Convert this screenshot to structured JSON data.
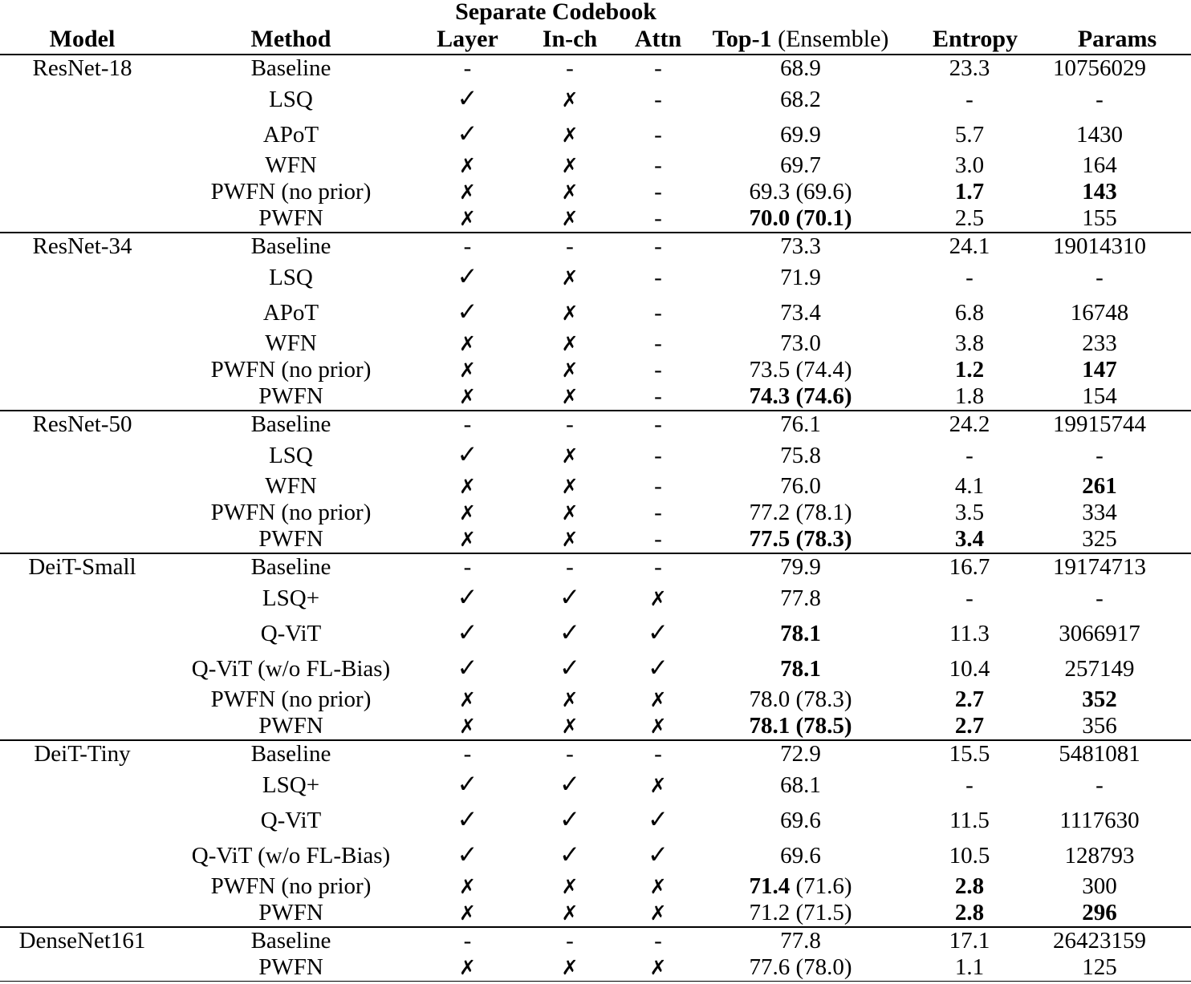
{
  "header": {
    "span_label": "Separate Codebook",
    "columns": {
      "model": "Model",
      "method": "Method",
      "layer": "Layer",
      "inch": "In-ch",
      "attn": "Attn",
      "top1_bold": "Top-1",
      "top1_normal": "(Ensemble)",
      "entropy": "Entropy",
      "params": "Params"
    }
  },
  "marks": {
    "check": "✓",
    "cross": "✗",
    "dash": "-"
  },
  "groups": [
    {
      "model": "ResNet-18",
      "rows": [
        {
          "method": "Baseline",
          "layer": "dash",
          "inch": "dash",
          "attn": "dash",
          "top1": {
            "main": "68.9"
          },
          "entropy": {
            "v": "23.3"
          },
          "params": {
            "v": "10756029"
          }
        },
        {
          "method": "LSQ",
          "layer": "check",
          "inch": "cross",
          "attn": "dash",
          "top1": {
            "main": "68.2"
          },
          "entropy": {
            "v": "-"
          },
          "params": {
            "v": "-"
          }
        },
        {
          "method": "APoT",
          "layer": "check",
          "inch": "cross",
          "attn": "dash",
          "top1": {
            "main": "69.9"
          },
          "entropy": {
            "v": "5.7"
          },
          "params": {
            "v": "1430"
          }
        },
        {
          "method": "WFN",
          "layer": "cross",
          "inch": "cross",
          "attn": "dash",
          "top1": {
            "main": "69.7"
          },
          "entropy": {
            "v": "3.0"
          },
          "params": {
            "v": "164"
          }
        },
        {
          "method": "PWFN (no prior)",
          "layer": "cross",
          "inch": "cross",
          "attn": "dash",
          "top1": {
            "main": "69.3",
            "paren": "(69.6)"
          },
          "entropy": {
            "v": "1.7",
            "bold": true
          },
          "params": {
            "v": "143",
            "bold": true
          }
        },
        {
          "method": "PWFN",
          "layer": "cross",
          "inch": "cross",
          "attn": "dash",
          "top1": {
            "main": "70.0",
            "paren": "(70.1)",
            "main_bold": true,
            "paren_bold": true
          },
          "entropy": {
            "v": "2.5"
          },
          "params": {
            "v": "155"
          }
        }
      ]
    },
    {
      "model": "ResNet-34",
      "rows": [
        {
          "method": "Baseline",
          "layer": "dash",
          "inch": "dash",
          "attn": "dash",
          "top1": {
            "main": "73.3"
          },
          "entropy": {
            "v": "24.1"
          },
          "params": {
            "v": "19014310"
          }
        },
        {
          "method": "LSQ",
          "layer": "check",
          "inch": "cross",
          "attn": "dash",
          "top1": {
            "main": "71.9"
          },
          "entropy": {
            "v": "-"
          },
          "params": {
            "v": "-"
          }
        },
        {
          "method": "APoT",
          "layer": "check",
          "inch": "cross",
          "attn": "dash",
          "top1": {
            "main": "73.4"
          },
          "entropy": {
            "v": "6.8"
          },
          "params": {
            "v": "16748"
          }
        },
        {
          "method": "WFN",
          "layer": "cross",
          "inch": "cross",
          "attn": "dash",
          "top1": {
            "main": "73.0"
          },
          "entropy": {
            "v": "3.8"
          },
          "params": {
            "v": "233"
          }
        },
        {
          "method": "PWFN (no prior)",
          "layer": "cross",
          "inch": "cross",
          "attn": "dash",
          "top1": {
            "main": "73.5",
            "paren": "(74.4)"
          },
          "entropy": {
            "v": "1.2",
            "bold": true
          },
          "params": {
            "v": "147",
            "bold": true
          }
        },
        {
          "method": "PWFN",
          "layer": "cross",
          "inch": "cross",
          "attn": "dash",
          "top1": {
            "main": "74.3",
            "paren": "(74.6)",
            "main_bold": true,
            "paren_bold": true
          },
          "entropy": {
            "v": "1.8"
          },
          "params": {
            "v": "154"
          }
        }
      ]
    },
    {
      "model": "ResNet-50",
      "rows": [
        {
          "method": "Baseline",
          "layer": "dash",
          "inch": "dash",
          "attn": "dash",
          "top1": {
            "main": "76.1"
          },
          "entropy": {
            "v": "24.2"
          },
          "params": {
            "v": "19915744"
          }
        },
        {
          "method": "LSQ",
          "layer": "check",
          "inch": "cross",
          "attn": "dash",
          "top1": {
            "main": "75.8"
          },
          "entropy": {
            "v": "-"
          },
          "params": {
            "v": "-"
          }
        },
        {
          "method": "WFN",
          "layer": "cross",
          "inch": "cross",
          "attn": "dash",
          "top1": {
            "main": "76.0"
          },
          "entropy": {
            "v": "4.1"
          },
          "params": {
            "v": "261",
            "bold": true
          }
        },
        {
          "method": "PWFN (no prior)",
          "layer": "cross",
          "inch": "cross",
          "attn": "dash",
          "top1": {
            "main": "77.2",
            "paren": "(78.1)"
          },
          "entropy": {
            "v": "3.5"
          },
          "params": {
            "v": "334"
          }
        },
        {
          "method": "PWFN",
          "layer": "cross",
          "inch": "cross",
          "attn": "dash",
          "top1": {
            "main": "77.5",
            "paren": "(78.3)",
            "main_bold": true,
            "paren_bold": true
          },
          "entropy": {
            "v": "3.4",
            "bold": true
          },
          "params": {
            "v": "325"
          }
        }
      ]
    },
    {
      "model": "DeiT-Small",
      "rows": [
        {
          "method": "Baseline",
          "layer": "dash",
          "inch": "dash",
          "attn": "dash",
          "top1": {
            "main": "79.9"
          },
          "entropy": {
            "v": "16.7"
          },
          "params": {
            "v": "19174713"
          }
        },
        {
          "method": "LSQ+",
          "layer": "check",
          "inch": "check",
          "attn": "cross",
          "top1": {
            "main": "77.8"
          },
          "entropy": {
            "v": "-"
          },
          "params": {
            "v": "-"
          }
        },
        {
          "method": "Q-ViT",
          "layer": "check",
          "inch": "check",
          "attn": "check",
          "top1": {
            "main": "78.1",
            "main_bold": true
          },
          "entropy": {
            "v": "11.3"
          },
          "params": {
            "v": "3066917"
          }
        },
        {
          "method": "Q-ViT (w/o FL-Bias)",
          "layer": "check",
          "inch": "check",
          "attn": "check",
          "top1": {
            "main": "78.1",
            "main_bold": true
          },
          "entropy": {
            "v": "10.4"
          },
          "params": {
            "v": "257149"
          }
        },
        {
          "method": "PWFN (no prior)",
          "layer": "cross",
          "inch": "cross",
          "attn": "cross",
          "top1": {
            "main": "78.0",
            "paren": "(78.3)"
          },
          "entropy": {
            "v": "2.7",
            "bold": true
          },
          "params": {
            "v": "352",
            "bold": true
          }
        },
        {
          "method": "PWFN",
          "layer": "cross",
          "inch": "cross",
          "attn": "cross",
          "top1": {
            "main": "78.1",
            "paren": "(78.5)",
            "main_bold": true,
            "paren_bold": true
          },
          "entropy": {
            "v": "2.7",
            "bold": true
          },
          "params": {
            "v": "356"
          }
        }
      ]
    },
    {
      "model": "DeiT-Tiny",
      "rows": [
        {
          "method": "Baseline",
          "layer": "dash",
          "inch": "dash",
          "attn": "dash",
          "top1": {
            "main": "72.9"
          },
          "entropy": {
            "v": "15.5"
          },
          "params": {
            "v": "5481081"
          }
        },
        {
          "method": "LSQ+",
          "layer": "check",
          "inch": "check",
          "attn": "cross",
          "top1": {
            "main": "68.1"
          },
          "entropy": {
            "v": "-"
          },
          "params": {
            "v": "-"
          }
        },
        {
          "method": "Q-ViT",
          "layer": "check",
          "inch": "check",
          "attn": "check",
          "top1": {
            "main": "69.6"
          },
          "entropy": {
            "v": "11.5"
          },
          "params": {
            "v": "1117630"
          }
        },
        {
          "method": "Q-ViT (w/o FL-Bias)",
          "layer": "check",
          "inch": "check",
          "attn": "check",
          "top1": {
            "main": "69.6"
          },
          "entropy": {
            "v": "10.5"
          },
          "params": {
            "v": "128793"
          }
        },
        {
          "method": "PWFN (no prior)",
          "layer": "cross",
          "inch": "cross",
          "attn": "cross",
          "top1": {
            "main": "71.4",
            "paren": "(71.6)",
            "main_bold": true
          },
          "entropy": {
            "v": "2.8",
            "bold": true
          },
          "params": {
            "v": "300"
          }
        },
        {
          "method": "PWFN",
          "layer": "cross",
          "inch": "cross",
          "attn": "cross",
          "top1": {
            "main": "71.2",
            "paren": "(71.5)"
          },
          "entropy": {
            "v": "2.8",
            "bold": true
          },
          "params": {
            "v": "296",
            "bold": true
          }
        }
      ]
    },
    {
      "model": "DenseNet161",
      "rows": [
        {
          "method": "Baseline",
          "layer": "dash",
          "inch": "dash",
          "attn": "dash",
          "top1": {
            "main": "77.8"
          },
          "entropy": {
            "v": "17.1"
          },
          "params": {
            "v": "26423159"
          }
        },
        {
          "method": "PWFN",
          "layer": "cross",
          "inch": "cross",
          "attn": "cross",
          "top1": {
            "main": "77.6",
            "paren": "(78.0)"
          },
          "entropy": {
            "v": "1.1"
          },
          "params": {
            "v": "125"
          }
        }
      ]
    }
  ]
}
